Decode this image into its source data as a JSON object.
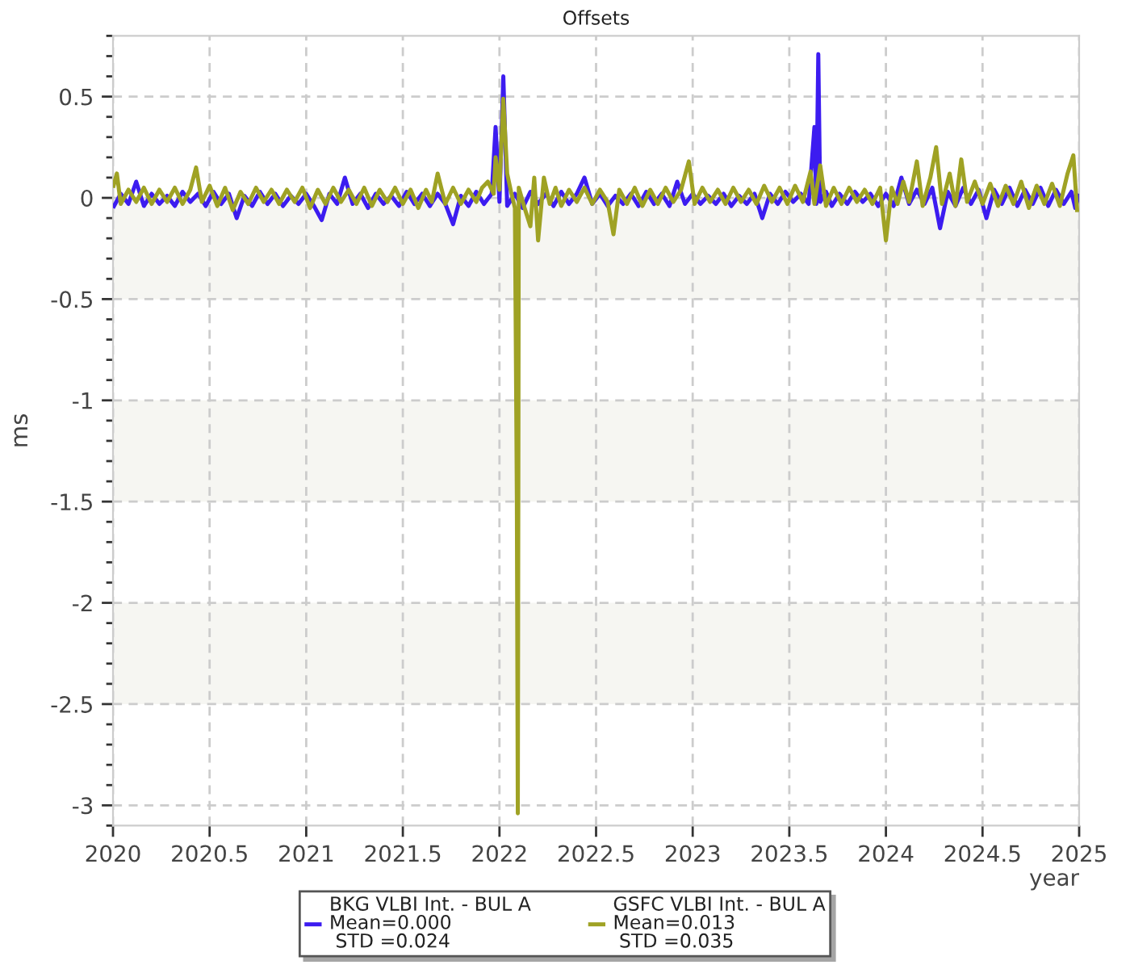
{
  "chart_data": {
    "type": "line",
    "title": "Offsets",
    "xlabel": "year",
    "ylabel": "ms",
    "xlim": [
      2020,
      2025
    ],
    "xticks": [
      2020,
      2020.5,
      2021,
      2021.5,
      2022,
      2022.5,
      2023,
      2023.5,
      2024,
      2024.5,
      2025
    ],
    "ylim": [
      -3.1,
      0.8
    ],
    "yticks": [
      0.5,
      0,
      -0.5,
      -1,
      -1.5,
      -2,
      -2.5,
      -3
    ],
    "grid": true,
    "legend": "bottom",
    "bands": [
      {
        "axis": "y",
        "from": 0,
        "to": -0.5,
        "color": "#f6f6f2"
      },
      {
        "axis": "y",
        "from": -1,
        "to": -1.5,
        "color": "#f6f6f2"
      },
      {
        "axis": "y",
        "from": -2,
        "to": -2.5,
        "color": "#f6f6f2"
      }
    ],
    "series": [
      {
        "name": "BKG VLBI Int. - BUL A\nMean=0.000\n STD =0.024",
        "color": "#3c1cf0",
        "x": [
          2020.0,
          2020.04,
          2020.08,
          2020.12,
          2020.16,
          2020.2,
          2020.24,
          2020.28,
          2020.32,
          2020.36,
          2020.4,
          2020.44,
          2020.48,
          2020.52,
          2020.56,
          2020.6,
          2020.64,
          2020.68,
          2020.72,
          2020.76,
          2020.8,
          2020.84,
          2020.88,
          2020.92,
          2020.96,
          2021.0,
          2021.04,
          2021.08,
          2021.12,
          2021.16,
          2021.2,
          2021.24,
          2021.28,
          2021.32,
          2021.36,
          2021.4,
          2021.44,
          2021.48,
          2021.52,
          2021.56,
          2021.6,
          2021.64,
          2021.68,
          2021.72,
          2021.76,
          2021.8,
          2021.84,
          2021.88,
          2021.92,
          2021.96,
          2021.98,
          2022.0,
          2022.02,
          2022.04,
          2022.08,
          2022.12,
          2022.16,
          2022.2,
          2022.24,
          2022.28,
          2022.32,
          2022.36,
          2022.4,
          2022.44,
          2022.48,
          2022.52,
          2022.56,
          2022.6,
          2022.64,
          2022.68,
          2022.72,
          2022.76,
          2022.8,
          2022.84,
          2022.88,
          2022.92,
          2022.96,
          2023.0,
          2023.04,
          2023.08,
          2023.12,
          2023.16,
          2023.2,
          2023.24,
          2023.28,
          2023.32,
          2023.36,
          2023.4,
          2023.44,
          2023.48,
          2023.52,
          2023.56,
          2023.6,
          2023.63,
          2023.64,
          2023.65,
          2023.66,
          2023.69,
          2023.72,
          2023.76,
          2023.8,
          2023.84,
          2023.88,
          2023.92,
          2023.96,
          2024.0,
          2024.04,
          2024.08,
          2024.12,
          2024.16,
          2024.2,
          2024.24,
          2024.28,
          2024.32,
          2024.36,
          2024.4,
          2024.44,
          2024.48,
          2024.52,
          2024.56,
          2024.6,
          2024.64,
          2024.68,
          2024.72,
          2024.76,
          2024.8,
          2024.84,
          2024.88,
          2024.92,
          2024.96,
          2024.98,
          2025.0
        ],
        "values": [
          -0.05,
          0.02,
          -0.03,
          0.08,
          -0.04,
          0.02,
          -0.03,
          0.01,
          -0.04,
          0.03,
          -0.02,
          0.02,
          -0.04,
          0.03,
          -0.03,
          0.02,
          -0.1,
          0.01,
          -0.04,
          0.03,
          -0.03,
          0.02,
          -0.04,
          0.01,
          -0.03,
          0.02,
          -0.04,
          -0.11,
          0.02,
          -0.03,
          0.1,
          -0.03,
          0.02,
          -0.05,
          0.02,
          -0.03,
          0.01,
          -0.04,
          0.03,
          -0.03,
          0.02,
          -0.04,
          0.02,
          -0.03,
          -0.13,
          0.01,
          -0.04,
          0.03,
          -0.03,
          0.02,
          0.35,
          -0.02,
          0.6,
          -0.04,
          0.02,
          -0.05,
          0.03,
          -0.03,
          0.02,
          -0.04,
          0.03,
          -0.03,
          0.02,
          0.1,
          -0.03,
          0.02,
          -0.04,
          0.01,
          -0.03,
          0.02,
          -0.04,
          0.03,
          -0.03,
          0.02,
          -0.04,
          0.08,
          -0.03,
          0.02,
          -0.03,
          0.01,
          -0.03,
          0.02,
          -0.04,
          0.01,
          -0.03,
          0.02,
          -0.1,
          0.02,
          -0.03,
          0.03,
          -0.02,
          0.02,
          -0.03,
          0.35,
          -0.03,
          0.71,
          -0.02,
          0.03,
          -0.04,
          0.02,
          -0.03,
          0.03,
          -0.02,
          0.02,
          -0.04,
          0.02,
          -0.04,
          0.1,
          -0.03,
          0.04,
          -0.03,
          0.05,
          -0.15,
          0.03,
          -0.04,
          0.05,
          -0.03,
          0.04,
          -0.1,
          0.04,
          -0.03,
          0.05,
          -0.04,
          0.04,
          -0.03,
          0.05,
          -0.04,
          0.04,
          -0.03,
          0.03,
          -0.05,
          0.02
        ]
      },
      {
        "name": "GSFC VLBI Int. - BUL A\nMean=0.013\n STD =0.035",
        "color": "#9fa224",
        "x": [
          2020.0,
          2020.02,
          2020.04,
          2020.08,
          2020.12,
          2020.16,
          2020.2,
          2020.24,
          2020.28,
          2020.32,
          2020.36,
          2020.4,
          2020.43,
          2020.46,
          2020.5,
          2020.54,
          2020.58,
          2020.62,
          2020.66,
          2020.7,
          2020.74,
          2020.78,
          2020.82,
          2020.86,
          2020.9,
          2020.94,
          2020.98,
          2021.02,
          2021.06,
          2021.1,
          2021.14,
          2021.18,
          2021.22,
          2021.26,
          2021.3,
          2021.34,
          2021.38,
          2021.42,
          2021.46,
          2021.5,
          2021.54,
          2021.58,
          2021.62,
          2021.65,
          2021.68,
          2021.72,
          2021.76,
          2021.8,
          2021.84,
          2021.88,
          2021.91,
          2021.94,
          2021.97,
          2021.98,
          2022.0,
          2022.02,
          2022.04,
          2022.06,
          2022.08,
          2022.09,
          2022.095,
          2022.1,
          2022.13,
          2022.16,
          2022.18,
          2022.2,
          2022.23,
          2022.26,
          2022.29,
          2022.32,
          2022.36,
          2022.4,
          2022.44,
          2022.48,
          2022.52,
          2022.56,
          2022.59,
          2022.62,
          2022.66,
          2022.7,
          2022.74,
          2022.78,
          2022.82,
          2022.86,
          2022.9,
          2022.94,
          2022.98,
          2023.01,
          2023.05,
          2023.09,
          2023.13,
          2023.17,
          2023.21,
          2023.25,
          2023.29,
          2023.33,
          2023.37,
          2023.41,
          2023.45,
          2023.49,
          2023.53,
          2023.57,
          2023.61,
          2023.63,
          2023.66,
          2023.69,
          2023.73,
          2023.77,
          2023.81,
          2023.85,
          2023.89,
          2023.93,
          2023.97,
          2024.0,
          2024.03,
          2024.06,
          2024.09,
          2024.12,
          2024.16,
          2024.19,
          2024.23,
          2024.26,
          2024.29,
          2024.33,
          2024.36,
          2024.39,
          2024.42,
          2024.46,
          2024.5,
          2024.54,
          2024.58,
          2024.62,
          2024.66,
          2024.7,
          2024.74,
          2024.78,
          2024.82,
          2024.86,
          2024.9,
          2024.94,
          2024.97,
          2024.99
        ],
        "values": [
          0.05,
          0.12,
          -0.03,
          0.04,
          -0.02,
          0.05,
          -0.03,
          0.04,
          -0.02,
          0.05,
          -0.03,
          0.04,
          0.15,
          -0.02,
          0.06,
          -0.04,
          0.05,
          -0.06,
          0.03,
          -0.03,
          0.05,
          -0.02,
          0.04,
          -0.03,
          0.04,
          -0.02,
          0.05,
          -0.05,
          0.04,
          -0.03,
          0.05,
          -0.02,
          0.04,
          -0.03,
          0.05,
          -0.04,
          0.04,
          -0.02,
          0.05,
          -0.03,
          0.04,
          -0.05,
          0.04,
          -0.02,
          0.12,
          -0.03,
          0.05,
          -0.03,
          0.04,
          -0.02,
          0.05,
          0.08,
          0.02,
          0.2,
          0.04,
          0.49,
          0.12,
          0.03,
          -0.05,
          -1.47,
          -3.04,
          0.05,
          -0.05,
          -0.14,
          0.1,
          -0.21,
          0.1,
          -0.03,
          0.05,
          -0.04,
          0.04,
          -0.02,
          0.05,
          -0.03,
          0.04,
          -0.02,
          -0.18,
          0.04,
          -0.03,
          0.05,
          -0.04,
          0.04,
          -0.03,
          0.05,
          -0.02,
          0.04,
          0.18,
          -0.03,
          0.05,
          -0.02,
          0.04,
          -0.03,
          0.05,
          -0.02,
          0.04,
          -0.03,
          0.06,
          -0.02,
          0.05,
          -0.03,
          0.06,
          -0.02,
          0.13,
          -0.03,
          0.16,
          -0.04,
          0.05,
          -0.03,
          0.05,
          -0.02,
          0.04,
          -0.03,
          0.05,
          -0.21,
          0.05,
          -0.03,
          0.08,
          -0.02,
          0.18,
          -0.04,
          0.1,
          0.25,
          -0.03,
          0.12,
          -0.04,
          0.19,
          -0.02,
          0.08,
          -0.03,
          0.07,
          -0.04,
          0.06,
          -0.03,
          0.08,
          -0.05,
          0.06,
          -0.03,
          0.07,
          -0.04,
          0.12,
          0.21,
          -0.07
        ]
      }
    ]
  }
}
